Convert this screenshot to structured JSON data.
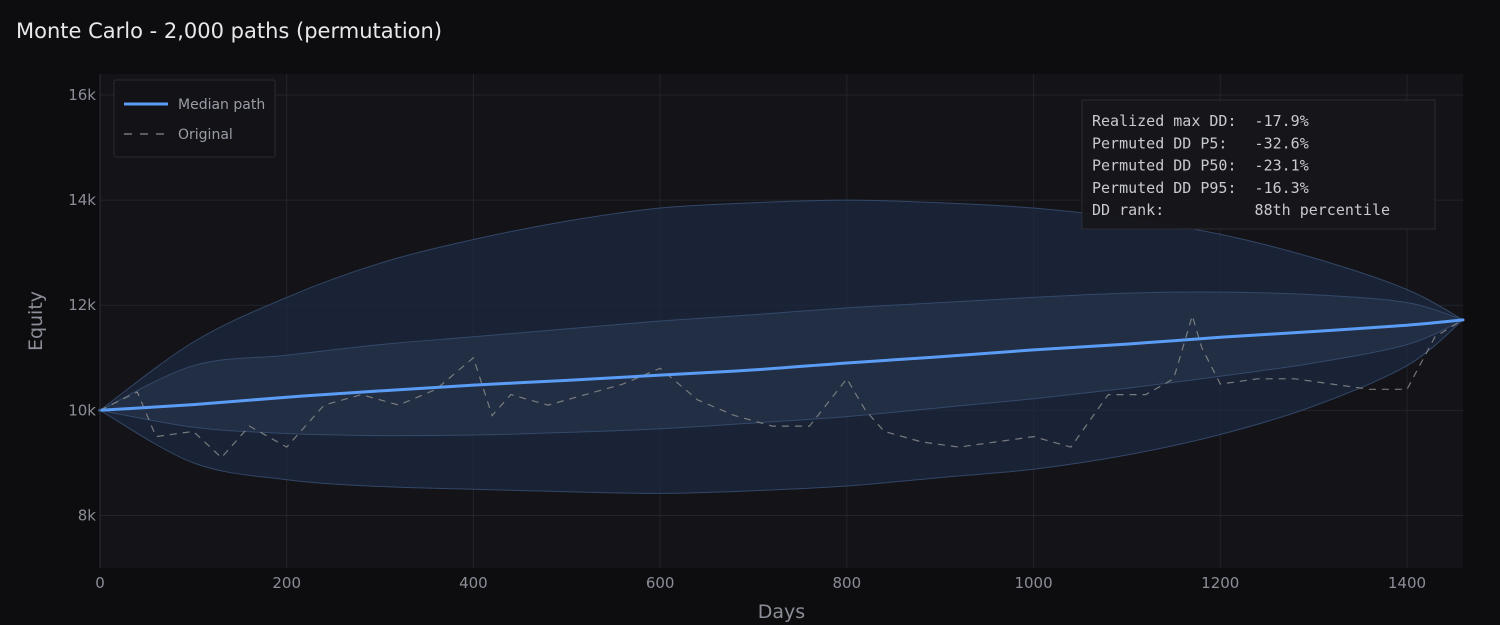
{
  "chart_data": {
    "type": "line",
    "title": "Monte Carlo - 2,000 paths (permutation)",
    "xlabel": "Days",
    "ylabel": "Equity",
    "xlim": [
      0,
      1460
    ],
    "ylim": [
      7000,
      16400
    ],
    "x_ticks": [
      0,
      200,
      400,
      600,
      800,
      1000,
      1200,
      1400
    ],
    "x_tick_labels": [
      "0",
      "200",
      "400",
      "600",
      "800",
      "1000",
      "1200",
      "1400"
    ],
    "y_ticks": [
      8000,
      10000,
      12000,
      14000,
      16000
    ],
    "y_tick_labels": [
      "8k",
      "10k",
      "12k",
      "14k",
      "16k"
    ],
    "grid": true,
    "legend": {
      "placement": "top-left",
      "entries": [
        {
          "label": "Median path",
          "style": "solid",
          "color": "#5b9cf5"
        },
        {
          "label": "Original",
          "style": "dashed",
          "color": "#8a8a8a"
        }
      ]
    },
    "series": [
      {
        "name": "Median path",
        "color": "#5b9cf5",
        "x": [
          0,
          100,
          200,
          300,
          400,
          500,
          600,
          700,
          800,
          900,
          1000,
          1100,
          1200,
          1300,
          1400,
          1460
        ],
        "y": [
          10000,
          10110,
          10250,
          10370,
          10480,
          10570,
          10670,
          10770,
          10900,
          11020,
          11150,
          11260,
          11390,
          11500,
          11620,
          11720
        ]
      },
      {
        "name": "Original",
        "color": "#8a8a8a",
        "style": "dashed",
        "x": [
          0,
          40,
          60,
          100,
          130,
          160,
          200,
          240,
          280,
          320,
          360,
          400,
          420,
          440,
          480,
          520,
          560,
          600,
          640,
          680,
          720,
          760,
          800,
          820,
          840,
          880,
          920,
          960,
          1000,
          1040,
          1080,
          1120,
          1150,
          1170,
          1180,
          1200,
          1240,
          1280,
          1320,
          1360,
          1400,
          1430,
          1460
        ],
        "y": [
          10000,
          10350,
          9500,
          9600,
          9100,
          9700,
          9300,
          10100,
          10300,
          10100,
          10400,
          11000,
          9900,
          10300,
          10100,
          10300,
          10500,
          10800,
          10200,
          9900,
          9700,
          9700,
          10600,
          10000,
          9600,
          9400,
          9300,
          9400,
          9500,
          9300,
          10300,
          10300,
          10600,
          11800,
          11200,
          10500,
          10600,
          10600,
          10500,
          10400,
          10400,
          11400,
          11720
        ]
      }
    ],
    "bands": [
      {
        "name": "outer",
        "x": [
          0,
          100,
          200,
          300,
          400,
          500,
          600,
          700,
          800,
          900,
          1000,
          1100,
          1200,
          1300,
          1400,
          1460
        ],
        "upper": [
          10000,
          11300,
          12150,
          12800,
          13250,
          13600,
          13850,
          13950,
          14000,
          13950,
          13850,
          13650,
          13350,
          12900,
          12300,
          11720
        ],
        "lower": [
          10000,
          9000,
          8680,
          8550,
          8500,
          8450,
          8420,
          8470,
          8560,
          8720,
          8880,
          9150,
          9540,
          10080,
          10850,
          11720
        ]
      },
      {
        "name": "inner",
        "x": [
          0,
          100,
          200,
          300,
          400,
          500,
          600,
          700,
          800,
          900,
          1000,
          1100,
          1200,
          1300,
          1400,
          1460
        ],
        "upper": [
          10000,
          10850,
          11050,
          11250,
          11400,
          11550,
          11700,
          11820,
          11950,
          12050,
          12150,
          12230,
          12250,
          12200,
          12050,
          11720
        ],
        "lower": [
          10000,
          9680,
          9560,
          9520,
          9530,
          9580,
          9650,
          9760,
          9880,
          10050,
          10220,
          10420,
          10650,
          10900,
          11250,
          11720
        ]
      }
    ],
    "stats_box": {
      "placement": "top-right",
      "lines": [
        "Realized max DD:  -17.9%",
        "Permuted DD P5:   -32.6%",
        "Permuted DD P50:  -23.1%",
        "Permuted DD P95:  -16.3%",
        "DD rank:          88th percentile"
      ]
    },
    "colors": {
      "background": "#0d0d10",
      "plot_background": "#131318",
      "grid": "#22242b",
      "band_outer": "#1e2a40",
      "band_inner": "#26364f",
      "band_edge": "#3a5175",
      "median": "#5b9cf5",
      "original": "#8a8a8a"
    }
  }
}
